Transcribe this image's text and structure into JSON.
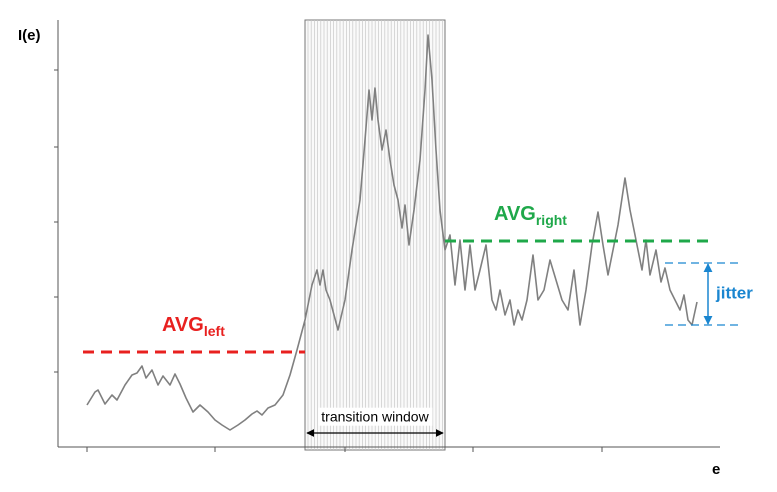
{
  "chart_data": {
    "type": "line",
    "y_label": "I(e)",
    "x_label": "e",
    "xlim": [
      0,
      662
    ],
    "ylim": [
      0,
      427
    ],
    "xticks": [
      29,
      157,
      287,
      415,
      544
    ],
    "yticks": [
      75,
      150,
      225,
      300,
      377
    ],
    "series": [
      {
        "color": "#808080",
        "x": [
          29,
          37,
          40,
          47,
          54,
          59,
          67,
          74,
          79,
          84,
          88,
          94,
          100,
          105,
          112,
          117,
          122,
          128,
          135,
          142,
          150,
          157,
          164,
          172,
          180,
          187,
          194,
          199,
          204,
          210,
          217,
          225,
          232,
          239,
          247,
          254,
          259,
          262,
          265,
          268,
          272,
          280,
          287,
          294,
          302,
          307,
          311,
          314,
          317,
          320,
          324,
          328,
          332,
          336,
          340,
          344,
          347,
          351,
          356,
          362,
          367,
          370,
          374,
          378,
          382,
          387,
          392,
          397,
          402,
          407,
          412,
          417,
          422,
          428,
          434,
          438,
          442,
          447,
          452,
          456,
          460,
          464,
          469,
          475,
          480,
          486,
          492,
          498,
          504,
          510,
          516,
          522,
          528,
          534,
          540,
          545,
          550,
          555,
          560,
          567,
          572,
          578,
          584,
          588,
          592,
          598,
          603,
          607,
          612,
          617,
          622,
          626,
          630,
          634,
          639
        ],
        "values": [
          42,
          55,
          57,
          43,
          52,
          47,
          62,
          72,
          74,
          81,
          69,
          77,
          62,
          71,
          62,
          73,
          63,
          49,
          35,
          42,
          35,
          27,
          22,
          17,
          22,
          27,
          33,
          36,
          32,
          39,
          42,
          52,
          72,
          97,
          127,
          162,
          177,
          162,
          177,
          157,
          147,
          117,
          147,
          197,
          247,
          307,
          357,
          327,
          359,
          327,
          297,
          317,
          287,
          262,
          247,
          219,
          242,
          202,
          237,
          287,
          357,
          412,
          367,
          297,
          237,
          197,
          212,
          162,
          207,
          157,
          202,
          157,
          177,
          202,
          147,
          137,
          157,
          132,
          147,
          122,
          137,
          127,
          147,
          192,
          147,
          157,
          187,
          167,
          147,
          137,
          177,
          122,
          157,
          202,
          235,
          202,
          172,
          197,
          222,
          269,
          237,
          207,
          177,
          207,
          172,
          197,
          165,
          179,
          157,
          147,
          137,
          152,
          127,
          122,
          145
        ]
      }
    ],
    "averages": [
      {
        "name": "AVG",
        "subscript": "left",
        "color": "#e8201f",
        "y": 95,
        "x": [
          25,
          247
        ]
      },
      {
        "name": "AVG",
        "subscript": "right",
        "color": "#1fa84a",
        "y": 206,
        "x": [
          387,
          652
        ]
      }
    ],
    "window": {
      "label": "transition window",
      "x": [
        247,
        387
      ]
    },
    "jitter": {
      "label": "jitter",
      "color": "#1a86d0",
      "range": [
        122,
        184
      ]
    }
  }
}
